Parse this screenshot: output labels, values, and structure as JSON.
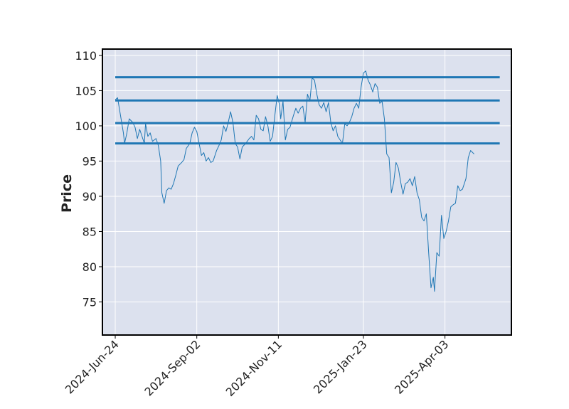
{
  "chart_data": {
    "type": "line",
    "title": "",
    "xlabel": "",
    "ylabel": "Price",
    "ylim": [
      70.3,
      110.9
    ],
    "xlim": [
      "2024-06-13",
      "2025-05-30"
    ],
    "grid": true,
    "background": "#dce1ee",
    "series_color": "#1f77b4",
    "x_ticks": [
      "2024-Jun-24",
      "2024-Sep-02",
      "2024-Nov-11",
      "2025-Jan-23",
      "2025-Apr-03"
    ],
    "x_tick_dates": [
      "2024-06-24",
      "2024-09-02",
      "2024-11-11",
      "2025-01-23",
      "2025-04-03"
    ],
    "y_ticks": [
      75,
      80,
      85,
      90,
      95,
      100,
      105,
      110
    ],
    "hlines": [
      {
        "y": 106.9,
        "x_start": "2024-06-24",
        "x_end": "2025-05-20"
      },
      {
        "y": 103.6,
        "x_start": "2024-06-24",
        "x_end": "2025-05-20"
      },
      {
        "y": 100.4,
        "x_start": "2024-06-24",
        "x_end": "2025-05-20"
      },
      {
        "y": 97.5,
        "x_start": "2024-06-24",
        "x_end": "2025-05-20"
      }
    ],
    "series": [
      {
        "points": [
          [
            "2024-06-24",
            103.7
          ],
          [
            "2024-06-26",
            104.0
          ],
          [
            "2024-06-28",
            102.0
          ],
          [
            "2024-07-01",
            99.0
          ],
          [
            "2024-07-02",
            97.5
          ],
          [
            "2024-07-04",
            99.0
          ],
          [
            "2024-07-06",
            101.0
          ],
          [
            "2024-07-09",
            100.5
          ],
          [
            "2024-07-11",
            99.8
          ],
          [
            "2024-07-13",
            98.2
          ],
          [
            "2024-07-15",
            99.5
          ],
          [
            "2024-07-17",
            98.5
          ],
          [
            "2024-07-19",
            97.5
          ],
          [
            "2024-07-20",
            100.3
          ],
          [
            "2024-07-22",
            98.5
          ],
          [
            "2024-07-24",
            99.0
          ],
          [
            "2024-07-26",
            97.8
          ],
          [
            "2024-07-29",
            98.2
          ],
          [
            "2024-07-31",
            97.2
          ],
          [
            "2024-08-02",
            95.0
          ],
          [
            "2024-08-03",
            90.5
          ],
          [
            "2024-08-05",
            89.0
          ],
          [
            "2024-08-07",
            90.8
          ],
          [
            "2024-08-09",
            91.2
          ],
          [
            "2024-08-11",
            91.0
          ],
          [
            "2024-08-13",
            91.8
          ],
          [
            "2024-08-15",
            93.0
          ],
          [
            "2024-08-17",
            94.3
          ],
          [
            "2024-08-20",
            94.8
          ],
          [
            "2024-08-22",
            95.2
          ],
          [
            "2024-08-24",
            96.8
          ],
          [
            "2024-08-27",
            97.5
          ],
          [
            "2024-08-29",
            99.0
          ],
          [
            "2024-08-31",
            99.8
          ],
          [
            "2024-09-02",
            99.2
          ],
          [
            "2024-09-04",
            97.5
          ],
          [
            "2024-09-06",
            95.8
          ],
          [
            "2024-09-08",
            96.2
          ],
          [
            "2024-09-10",
            95.0
          ],
          [
            "2024-09-12",
            95.5
          ],
          [
            "2024-09-14",
            94.8
          ],
          [
            "2024-09-16",
            95.0
          ],
          [
            "2024-09-19",
            96.5
          ],
          [
            "2024-09-21",
            97.2
          ],
          [
            "2024-09-23",
            98.0
          ],
          [
            "2024-09-25",
            100.0
          ],
          [
            "2024-09-27",
            99.2
          ],
          [
            "2024-09-29",
            100.5
          ],
          [
            "2024-10-01",
            102.0
          ],
          [
            "2024-10-03",
            100.5
          ],
          [
            "2024-10-05",
            97.5
          ],
          [
            "2024-10-07",
            97.0
          ],
          [
            "2024-10-09",
            95.3
          ],
          [
            "2024-10-11",
            97.0
          ],
          [
            "2024-10-14",
            97.5
          ],
          [
            "2024-10-17",
            98.2
          ],
          [
            "2024-10-19",
            98.5
          ],
          [
            "2024-10-21",
            98.0
          ],
          [
            "2024-10-23",
            101.5
          ],
          [
            "2024-10-25",
            101.0
          ],
          [
            "2024-10-27",
            99.5
          ],
          [
            "2024-10-29",
            99.3
          ],
          [
            "2024-10-31",
            101.3
          ],
          [
            "2024-11-02",
            100.0
          ],
          [
            "2024-11-04",
            97.8
          ],
          [
            "2024-11-06",
            98.5
          ],
          [
            "2024-11-08",
            101.5
          ],
          [
            "2024-11-10",
            104.3
          ],
          [
            "2024-11-12",
            103.0
          ],
          [
            "2024-11-13",
            101.0
          ],
          [
            "2024-11-15",
            103.5
          ],
          [
            "2024-11-17",
            98.0
          ],
          [
            "2024-11-19",
            99.5
          ],
          [
            "2024-11-21",
            99.8
          ],
          [
            "2024-11-24",
            101.5
          ],
          [
            "2024-11-26",
            102.5
          ],
          [
            "2024-11-28",
            101.8
          ],
          [
            "2024-11-30",
            102.5
          ],
          [
            "2024-12-02",
            102.8
          ],
          [
            "2024-12-04",
            100.5
          ],
          [
            "2024-12-06",
            104.5
          ],
          [
            "2024-12-08",
            103.5
          ],
          [
            "2024-12-10",
            106.8
          ],
          [
            "2024-12-12",
            106.5
          ],
          [
            "2024-12-14",
            104.5
          ],
          [
            "2024-12-16",
            103.0
          ],
          [
            "2024-12-18",
            102.5
          ],
          [
            "2024-12-20",
            103.3
          ],
          [
            "2024-12-22",
            102.0
          ],
          [
            "2024-12-24",
            103.3
          ],
          [
            "2024-12-26",
            100.5
          ],
          [
            "2024-12-28",
            99.3
          ],
          [
            "2024-12-30",
            100.0
          ],
          [
            "2025-01-01",
            98.5
          ],
          [
            "2025-01-03",
            98.0
          ],
          [
            "2025-01-05",
            97.5
          ],
          [
            "2025-01-07",
            100.3
          ],
          [
            "2025-01-09",
            100.0
          ],
          [
            "2025-01-11",
            100.5
          ],
          [
            "2025-01-13",
            101.3
          ],
          [
            "2025-01-15",
            102.5
          ],
          [
            "2025-01-17",
            103.2
          ],
          [
            "2025-01-19",
            102.5
          ],
          [
            "2025-01-21",
            105.5
          ],
          [
            "2025-01-23",
            107.5
          ],
          [
            "2025-01-25",
            107.8
          ],
          [
            "2025-01-27",
            106.5
          ],
          [
            "2025-01-29",
            105.8
          ],
          [
            "2025-01-31",
            104.8
          ],
          [
            "2025-02-02",
            106.0
          ],
          [
            "2025-02-04",
            105.5
          ],
          [
            "2025-02-06",
            103.2
          ],
          [
            "2025-02-08",
            103.5
          ],
          [
            "2025-02-10",
            101.0
          ],
          [
            "2025-02-12",
            96.0
          ],
          [
            "2025-02-14",
            95.5
          ],
          [
            "2025-02-16",
            90.5
          ],
          [
            "2025-02-18",
            92.0
          ],
          [
            "2025-02-20",
            94.8
          ],
          [
            "2025-02-22",
            94.0
          ],
          [
            "2025-02-24",
            92.0
          ],
          [
            "2025-02-26",
            90.3
          ],
          [
            "2025-02-28",
            91.8
          ],
          [
            "2025-03-02",
            92.0
          ],
          [
            "2025-03-04",
            92.5
          ],
          [
            "2025-03-06",
            91.5
          ],
          [
            "2025-03-08",
            92.8
          ],
          [
            "2025-03-10",
            90.5
          ],
          [
            "2025-03-12",
            89.5
          ],
          [
            "2025-03-14",
            87.0
          ],
          [
            "2025-03-16",
            86.5
          ],
          [
            "2025-03-18",
            87.5
          ],
          [
            "2025-03-20",
            82.0
          ],
          [
            "2025-03-22",
            77.0
          ],
          [
            "2025-03-24",
            78.5
          ],
          [
            "2025-03-25",
            76.5
          ],
          [
            "2025-03-27",
            82.0
          ],
          [
            "2025-03-29",
            81.5
          ],
          [
            "2025-03-31",
            87.3
          ],
          [
            "2025-04-02",
            84.0
          ],
          [
            "2025-04-04",
            85.0
          ],
          [
            "2025-04-06",
            86.5
          ],
          [
            "2025-04-08",
            88.5
          ],
          [
            "2025-04-10",
            88.8
          ],
          [
            "2025-04-12",
            89.0
          ],
          [
            "2025-04-14",
            91.5
          ],
          [
            "2025-04-16",
            90.8
          ],
          [
            "2025-04-18",
            91.0
          ],
          [
            "2025-04-21",
            92.5
          ],
          [
            "2025-04-23",
            95.5
          ],
          [
            "2025-04-25",
            96.5
          ],
          [
            "2025-04-28",
            96.0
          ]
        ]
      }
    ]
  }
}
